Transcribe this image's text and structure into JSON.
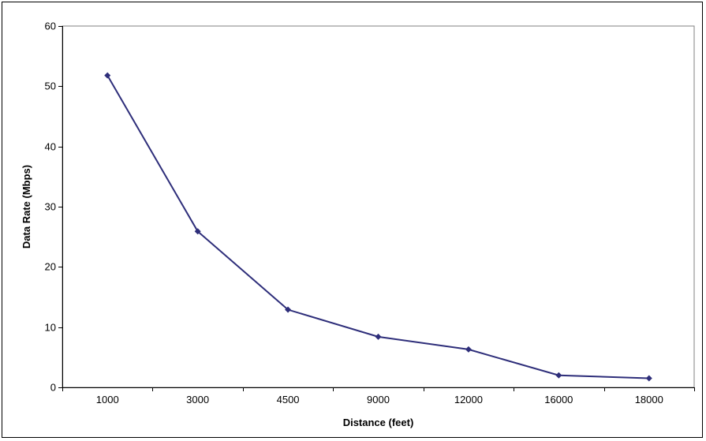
{
  "chart_data": {
    "type": "line",
    "title": "",
    "xlabel": "Distance (feet)",
    "ylabel": "Data Rate (Mbps)",
    "categories": [
      "1000",
      "3000",
      "4500",
      "9000",
      "12000",
      "16000",
      "18000"
    ],
    "series": [
      {
        "values": [
          51.8,
          25.9,
          12.9,
          8.4,
          6.3,
          2.0,
          1.5
        ]
      }
    ],
    "ylim": [
      0,
      60
    ],
    "yticks": [
      "0",
      "10",
      "20",
      "30",
      "40",
      "50",
      "60"
    ],
    "grid": true,
    "legend": "none",
    "colors": {
      "line": "#2e2e7a",
      "plot_background": "#ffffff",
      "gridline": "#000000"
    }
  }
}
